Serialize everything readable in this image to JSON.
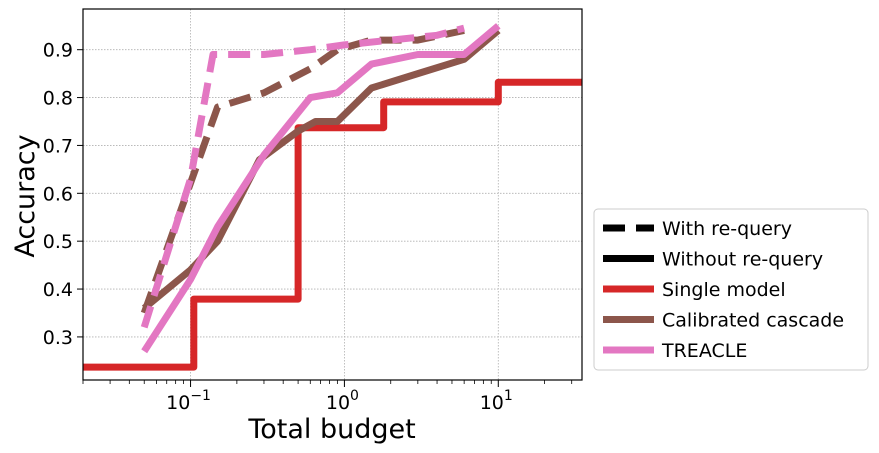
{
  "chart_data": {
    "type": "line",
    "xlabel": "Total budget",
    "ylabel": "Accuracy",
    "x_scale": "log",
    "xlim": [
      0.02,
      35
    ],
    "ylim": [
      0.21,
      0.985
    ],
    "x_ticks": [
      {
        "value": 0.1,
        "base": "10",
        "exp": "−1"
      },
      {
        "value": 1,
        "base": "10",
        "exp": "0"
      },
      {
        "value": 10,
        "base": "10",
        "exp": "1"
      }
    ],
    "y_ticks": [
      {
        "value": 0.3,
        "label": "0.3"
      },
      {
        "value": 0.4,
        "label": "0.4"
      },
      {
        "value": 0.5,
        "label": "0.5"
      },
      {
        "value": 0.6,
        "label": "0.6"
      },
      {
        "value": 0.7,
        "label": "0.7"
      },
      {
        "value": 0.8,
        "label": "0.8"
      },
      {
        "value": 0.9,
        "label": "0.9"
      }
    ],
    "grid": true,
    "legend": {
      "placement": "outside-right-bottom",
      "entries": [
        {
          "label": "With re-query",
          "color": "#000000",
          "style": "dashed"
        },
        {
          "label": "Without re-query",
          "color": "#000000",
          "style": "solid"
        },
        {
          "label": "Single model",
          "color": "#d62728",
          "style": "solid"
        },
        {
          "label": "Calibrated cascade",
          "color": "#8c564b",
          "style": "solid"
        },
        {
          "label": "TREACLE",
          "color": "#e377c2",
          "style": "solid"
        }
      ]
    },
    "series": [
      {
        "name": "Single model",
        "method": "Single model",
        "requery": false,
        "color": "#d62728",
        "x": [
          0.02,
          0.105,
          0.105,
          0.5,
          0.5,
          1.8,
          1.8,
          10,
          10,
          35
        ],
        "y": [
          0.237,
          0.237,
          0.379,
          0.379,
          0.737,
          0.737,
          0.791,
          0.791,
          0.832,
          0.832
        ]
      },
      {
        "name": "Calibrated cascade",
        "method": "Calibrated cascade",
        "requery": false,
        "color": "#8c564b",
        "x": [
          0.05,
          0.1,
          0.15,
          0.28,
          0.5,
          0.65,
          0.9,
          1.5,
          3,
          6,
          10
        ],
        "y": [
          0.36,
          0.44,
          0.5,
          0.67,
          0.73,
          0.75,
          0.75,
          0.82,
          0.85,
          0.88,
          0.94
        ]
      },
      {
        "name": "TREACLE",
        "method": "TREACLE",
        "requery": false,
        "color": "#e377c2",
        "x": [
          0.05,
          0.1,
          0.15,
          0.3,
          0.6,
          0.9,
          1.5,
          3,
          6,
          10
        ],
        "y": [
          0.27,
          0.42,
          0.53,
          0.68,
          0.8,
          0.81,
          0.87,
          0.89,
          0.89,
          0.95
        ]
      },
      {
        "name": "Calibrated cascade",
        "method": "Calibrated cascade",
        "requery": true,
        "color": "#8c564b",
        "x": [
          0.05,
          0.15,
          0.3,
          0.6,
          0.9,
          1.5,
          3,
          6
        ],
        "y": [
          0.35,
          0.78,
          0.81,
          0.86,
          0.9,
          0.92,
          0.92,
          0.94
        ]
      },
      {
        "name": "TREACLE",
        "method": "TREACLE",
        "requery": true,
        "color": "#e377c2",
        "x": [
          0.05,
          0.1,
          0.14,
          0.3,
          0.6,
          1,
          2,
          4,
          6
        ],
        "y": [
          0.32,
          0.63,
          0.89,
          0.89,
          0.9,
          0.91,
          0.92,
          0.93,
          0.945
        ]
      }
    ]
  }
}
